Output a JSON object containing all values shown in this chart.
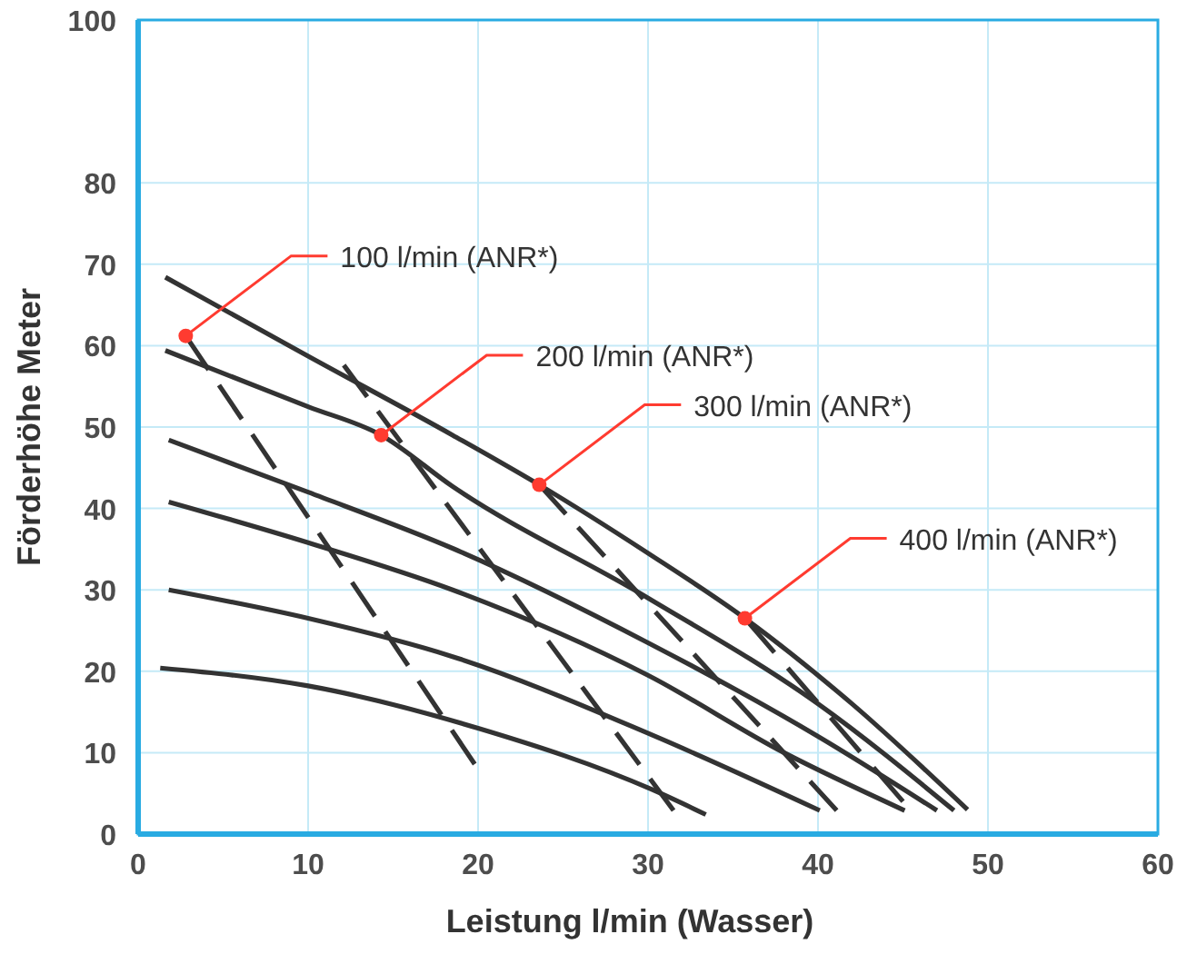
{
  "chart_data": {
    "type": "line",
    "xlabel": "Leistung l/min (Wasser)",
    "ylabel": "Förderhöhe Meter",
    "xlim": [
      0,
      60
    ],
    "xticks": [
      0,
      10,
      20,
      30,
      40,
      50,
      60
    ],
    "ylim": [
      0,
      100
    ],
    "yticks": [
      0,
      10,
      20,
      30,
      40,
      50,
      60,
      70,
      80,
      100
    ],
    "grid": true,
    "series": [
      {
        "color": "#333333",
        "line_style": "solid",
        "x": [
          1.6,
          10,
          18.5,
          23.6,
          30,
          35.7,
          42,
          48.8
        ],
        "values": [
          68.4,
          58.7,
          49,
          42.9,
          34.5,
          26.5,
          16,
          3
        ]
      },
      {
        "color": "#333333",
        "line_style": "solid",
        "x": [
          1.6,
          10,
          14.3,
          18.5,
          30,
          40,
          48
        ],
        "values": [
          59.4,
          52.5,
          49,
          42.7,
          29,
          16,
          2.9
        ]
      },
      {
        "color": "#333333",
        "line_style": "solid",
        "x": [
          1.8,
          10,
          18.5,
          30,
          40,
          47
        ],
        "values": [
          48.4,
          42,
          35.1,
          23.5,
          12,
          2.9
        ]
      },
      {
        "color": "#333333",
        "line_style": "solid",
        "x": [
          1.8,
          10,
          18.5,
          30,
          38,
          45.1
        ],
        "values": [
          40.8,
          35.8,
          30,
          19.5,
          10,
          2.9
        ]
      },
      {
        "color": "#333333",
        "line_style": "solid",
        "x": [
          1.8,
          10,
          18.5,
          30.2,
          40.1
        ],
        "values": [
          30,
          26.5,
          21.8,
          12.2,
          2.9
        ]
      },
      {
        "color": "#333333",
        "line_style": "solid",
        "x": [
          1.3,
          10,
          20,
          30.2,
          33.4
        ],
        "values": [
          20.4,
          18.2,
          13,
          5.5,
          2.4
        ]
      },
      {
        "color": "#333333",
        "line_style": "dashed",
        "x": [
          2.8,
          19.8
        ],
        "values": [
          61.2,
          8.6
        ]
      },
      {
        "color": "#333333",
        "line_style": "dashed",
        "x": [
          12.1,
          31.5
        ],
        "values": [
          57.6,
          2.9
        ]
      },
      {
        "color": "#333333",
        "line_style": "dashed",
        "x": [
          23.6,
          41.1
        ],
        "values": [
          42.9,
          2.9
        ]
      },
      {
        "color": "#333333",
        "line_style": "dashed",
        "x": [
          35.7,
          45
        ],
        "values": [
          26.5,
          4
        ]
      }
    ],
    "annotations": [
      {
        "text": "100 l/min (ANR*)",
        "x": 2.8,
        "y": 61.2
      },
      {
        "text": "200 l/min (ANR*)",
        "x": 14.3,
        "y": 49
      },
      {
        "text": "300 l/min (ANR*)",
        "x": 23.6,
        "y": 42.9
      },
      {
        "text": "400 l/min (ANR*)",
        "x": 35.7,
        "y": 26.5
      }
    ]
  }
}
